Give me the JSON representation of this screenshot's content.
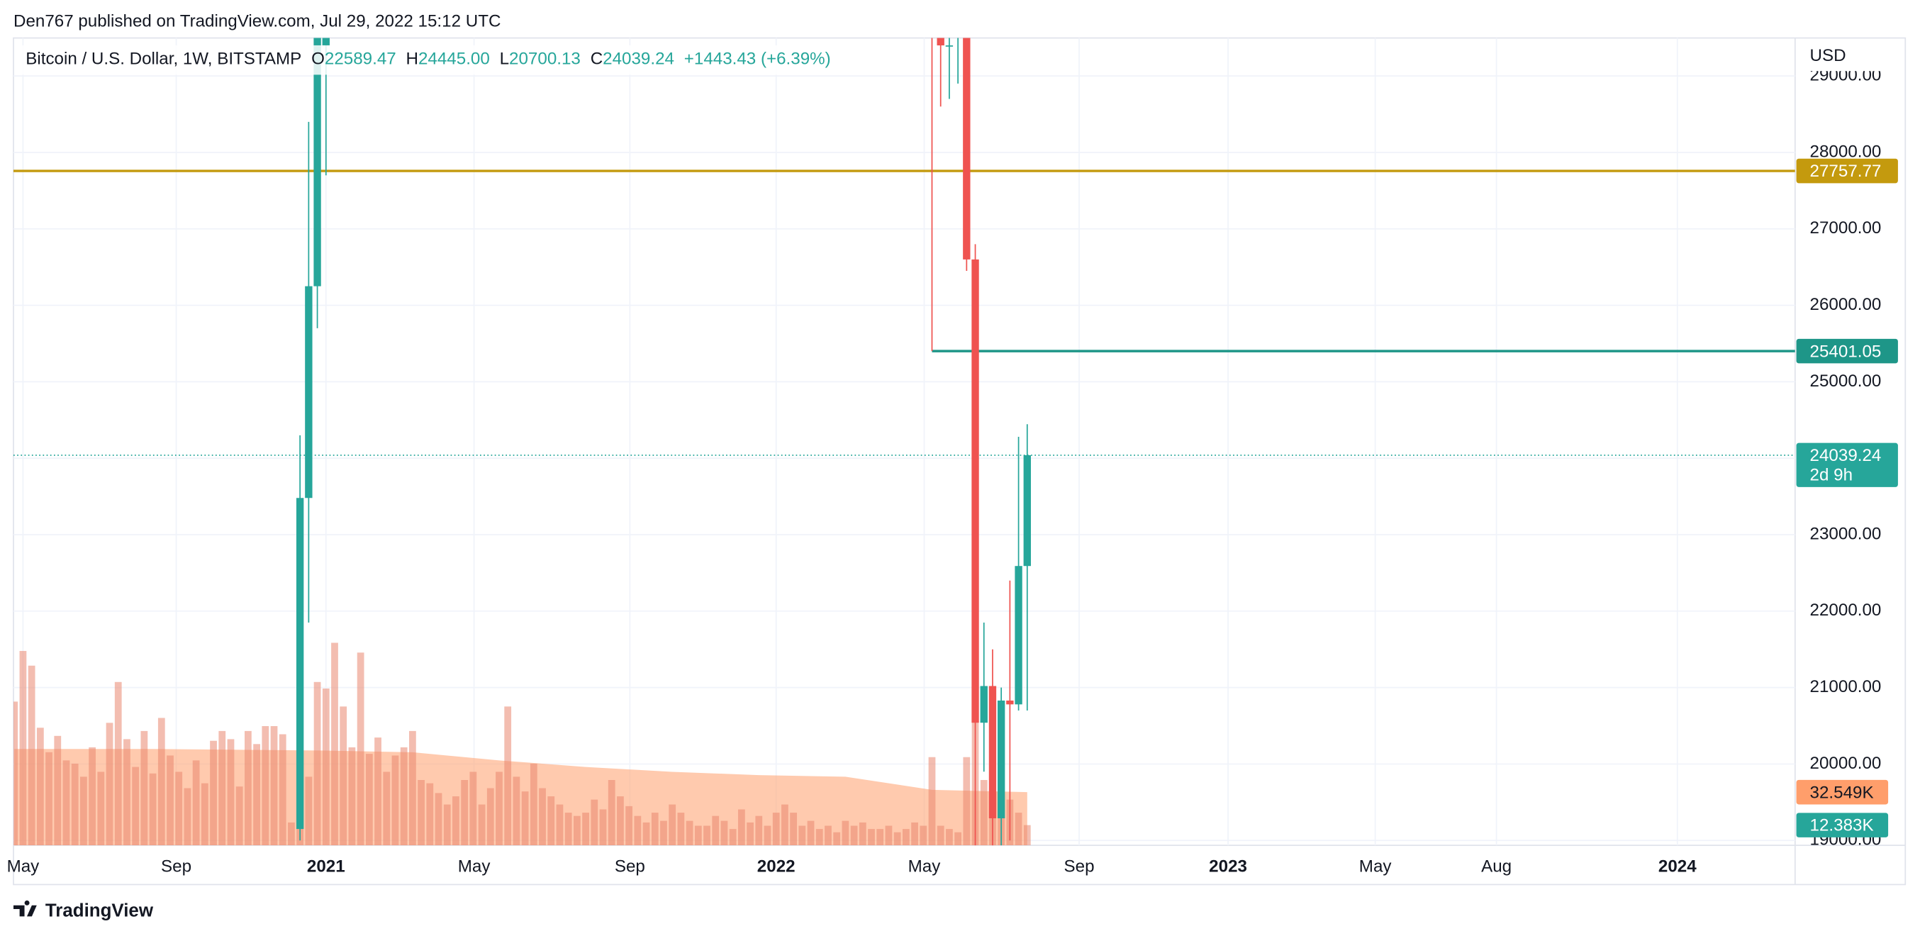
{
  "header": {
    "published": "Den767 published on TradingView.com, Jul 29, 2022 15:12 UTC"
  },
  "footer": {
    "brand": "TradingView"
  },
  "chart_data": {
    "type": "candlestick",
    "title": "Bitcoin / U.S. Dollar, 1W, BITSTAMP",
    "legend": {
      "o": "O",
      "open": "22589.47",
      "h": "H",
      "high": "24445.00",
      "l": "L",
      "low": "20700.13",
      "c": "C",
      "close": "24039.24",
      "change": "+1443.43 (+6.39%)"
    },
    "currency": "USD",
    "up_color": "#26a69a",
    "down_color": "#ef5350",
    "x": [
      -3,
      -2,
      -1,
      0,
      70,
      71,
      72,
      73,
      74,
      75,
      76,
      77,
      78,
      79,
      80,
      81
    ],
    "open": [
      19150,
      23480,
      26250,
      29400,
      34000,
      31000,
      29400,
      29800,
      29800,
      26600,
      20540,
      21020,
      19290,
      20830,
      20780,
      22590
    ],
    "high": [
      24300,
      28400,
      29500,
      29600,
      34200,
      31500,
      30700,
      31400,
      31300,
      26800,
      21850,
      21500,
      21000,
      22400,
      24280,
      24445
    ],
    "low": [
      19000,
      21850,
      25700,
      27700,
      25401,
      28600,
      28700,
      28900,
      26450,
      17600,
      19900,
      18900,
      18900,
      19000,
      20700,
      20700
    ],
    "close": [
      23480,
      26250,
      29500,
      29500,
      31000,
      29400,
      29400,
      30200,
      26600,
      20540,
      21020,
      19290,
      20830,
      20780,
      22590,
      24039
    ],
    "xlim": [
      -36.1,
      169.7
    ],
    "xticks": [
      {
        "value": -35,
        "label": "May"
      },
      {
        "value": -17.3,
        "label": "Sep"
      },
      {
        "value": 0,
        "label": "2021"
      },
      {
        "value": 17.1,
        "label": "May"
      },
      {
        "value": 35.1,
        "label": "Sep"
      },
      {
        "value": 52,
        "label": "2022"
      },
      {
        "value": 69.1,
        "label": "May"
      },
      {
        "value": 87,
        "label": "Sep"
      },
      {
        "value": 104.2,
        "label": "2023"
      },
      {
        "value": 121.2,
        "label": "May"
      },
      {
        "value": 135.2,
        "label": "Aug"
      },
      {
        "value": 156.1,
        "label": "2024"
      }
    ],
    "ylim": [
      18936,
      29497
    ],
    "yticks": [
      {
        "value": 19000,
        "label": "19000.00"
      },
      {
        "value": 20000,
        "label": "20000.00"
      },
      {
        "value": 21000,
        "label": "21000.00"
      },
      {
        "value": 22000,
        "label": "22000.00"
      },
      {
        "value": 23000,
        "label": "23000.00"
      },
      {
        "value": 24000,
        "label": "24000.00"
      },
      {
        "value": 25000,
        "label": "25000.00"
      },
      {
        "value": 26000,
        "label": "26000.00"
      },
      {
        "value": 27000,
        "label": "27000.00"
      },
      {
        "value": 28000,
        "label": "28000.00"
      },
      {
        "value": 29000,
        "label": "29000.00"
      }
    ],
    "grid": true,
    "levels": [
      {
        "value": 27757.77,
        "color": "#c49a0e"
      },
      {
        "value": 25401.05,
        "color": "#1e9688",
        "start_x": 70
      }
    ],
    "last_price": {
      "value": 24039.24,
      "countdown": "2d 9h",
      "color": "#26a69a"
    },
    "volume": {
      "x_start": -36,
      "color": "#e9866f",
      "values": [
        88000,
        119000,
        110000,
        72000,
        57000,
        67000,
        52000,
        50000,
        42000,
        60000,
        45000,
        75000,
        100000,
        65000,
        48000,
        70000,
        44000,
        78000,
        55000,
        45000,
        35000,
        52000,
        38000,
        64000,
        70000,
        65000,
        36000,
        70000,
        62000,
        73000,
        73000,
        68000,
        14000,
        75000,
        42000,
        100000,
        96000,
        124000,
        85000,
        60000,
        118000,
        56000,
        66000,
        45000,
        55000,
        60000,
        70000,
        40000,
        38000,
        32000,
        25000,
        30000,
        40000,
        45000,
        25000,
        35000,
        45000,
        85000,
        42000,
        33000,
        50000,
        35000,
        30000,
        25000,
        20000,
        18000,
        20000,
        28000,
        22000,
        40000,
        30000,
        24000,
        18000,
        14000,
        20000,
        15000,
        25000,
        20000,
        15000,
        12000,
        12000,
        18000,
        15000,
        10000,
        22000,
        14000,
        18000,
        12000,
        20000,
        25000,
        20000,
        12000,
        15000,
        10000,
        12000,
        8000,
        15000,
        12000,
        14000,
        10000,
        10000,
        12000,
        8000,
        10000,
        14000,
        12000,
        54000,
        12000,
        10000,
        8000,
        54000,
        80000,
        40000,
        45000,
        30000,
        28000,
        20000,
        12383
      ],
      "last_label": "12.383K",
      "last_color": "#26a69a",
      "vlim": [
        0,
        120000
      ],
      "ma": {
        "x": [
          -36,
          -20,
          0,
          10,
          20,
          30,
          40,
          50,
          60,
          70,
          81
        ],
        "values": [
          59000,
          59000,
          58000,
          57000,
          52000,
          48000,
          45000,
          43000,
          42000,
          34000,
          32549
        ],
        "color": "#ff9e6b",
        "last_label": "32.549K"
      }
    }
  }
}
